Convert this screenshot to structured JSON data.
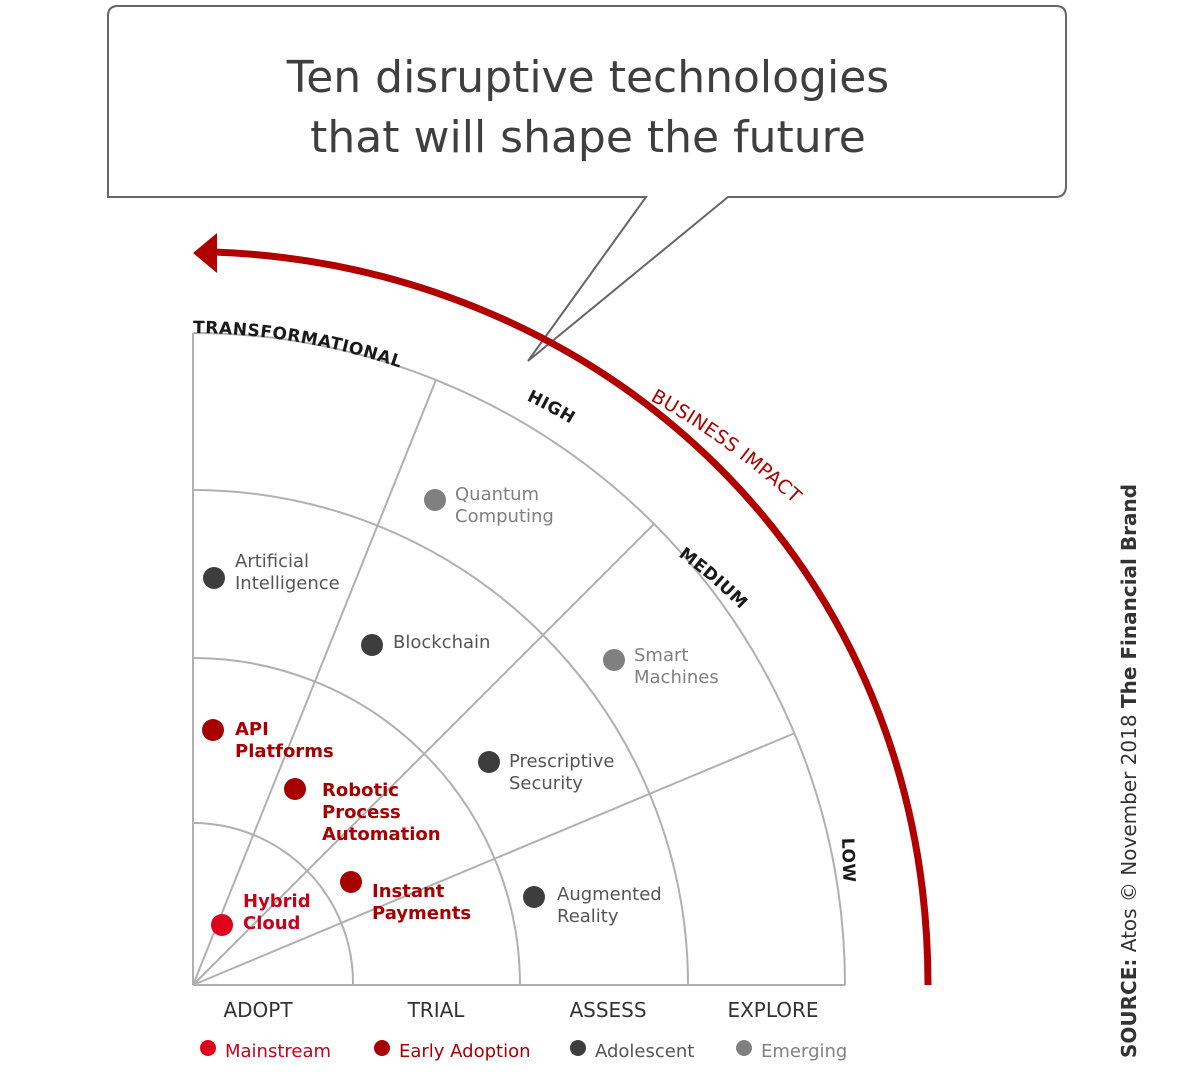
{
  "title": [
    "Ten disruptive technologies",
    "that will shape the future"
  ],
  "impact_label": "BUSINESS IMPACT",
  "ring_labels": [
    "TRANSFORMATIONAL",
    "HIGH",
    "MEDIUM",
    "LOW"
  ],
  "columns": [
    "ADOPT",
    "TRIAL",
    "ASSESS",
    "EXPLORE"
  ],
  "categories": [
    {
      "key": "mainstream",
      "label": "Mainstream",
      "color": "#e0001b",
      "text_color": "#c8001a"
    },
    {
      "key": "early",
      "label": "Early Adoption",
      "color": "#a80000",
      "text_color": "#a80000"
    },
    {
      "key": "adolescent",
      "label": "Adolescent",
      "color": "#3d3d3d",
      "text_color": "#555555"
    },
    {
      "key": "emerging",
      "label": "Emerging",
      "color": "#808080",
      "text_color": "#808080"
    }
  ],
  "technologies": [
    {
      "lines": [
        "Quantum",
        "Computing"
      ],
      "category": "emerging",
      "ring": "TRANSFORMATIONAL",
      "stage": "TRIAL"
    },
    {
      "lines": [
        "Artificial",
        "Intelligence"
      ],
      "category": "adolescent",
      "ring": "TRANSFORMATIONAL",
      "stage": "ADOPT"
    },
    {
      "lines": [
        "Blockchain"
      ],
      "category": "adolescent",
      "ring": "HIGH",
      "stage": "TRIAL"
    },
    {
      "lines": [
        "Smart",
        "Machines"
      ],
      "category": "emerging",
      "ring": "HIGH",
      "stage": "ASSESS"
    },
    {
      "lines": [
        "API",
        "Platforms"
      ],
      "category": "early",
      "ring": "HIGH",
      "stage": "ADOPT"
    },
    {
      "lines": [
        "Prescriptive",
        "Security"
      ],
      "category": "adolescent",
      "ring": "MEDIUM",
      "stage": "ASSESS"
    },
    {
      "lines": [
        "Robotic",
        "Process",
        "Automation"
      ],
      "category": "early",
      "ring": "MEDIUM",
      "stage": "ADOPT"
    },
    {
      "lines": [
        "Hybrid",
        "Cloud"
      ],
      "category": "mainstream",
      "ring": "MEDIUM",
      "stage": "ADOPT"
    },
    {
      "lines": [
        "Instant",
        "Payments"
      ],
      "category": "early",
      "ring": "LOW",
      "stage": "TRIAL"
    },
    {
      "lines": [
        "Augmented",
        "Reality"
      ],
      "category": "adolescent",
      "ring": "LOW",
      "stage": "ASSESS"
    }
  ],
  "source": {
    "prefix": "SOURCE:",
    "text": " Atos © November 2018 ",
    "brand": "The Financial Brand"
  },
  "colors": {
    "accent": "#b00000",
    "grid": "#b0b0b0",
    "text": "#3f3f3f"
  }
}
